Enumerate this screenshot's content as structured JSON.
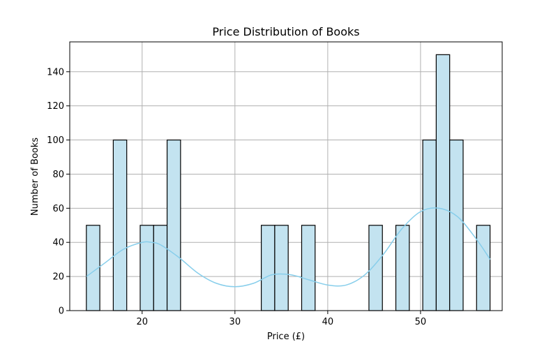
{
  "chart_data": {
    "type": "bar",
    "title": "Price Distribution of Books",
    "xlabel": "Price (£)",
    "ylabel": "Number of Books",
    "xlim": [
      12.2,
      58.8
    ],
    "ylim": [
      0,
      157.5
    ],
    "xticks": [
      20,
      30,
      40,
      50
    ],
    "yticks": [
      0,
      20,
      40,
      60,
      80,
      100,
      120,
      140
    ],
    "grid": true,
    "bin_width": 1.45,
    "bins": [
      {
        "start": 13.99,
        "end": 15.44,
        "count": 50
      },
      {
        "start": 16.89,
        "end": 18.34,
        "count": 100
      },
      {
        "start": 19.79,
        "end": 21.24,
        "count": 50
      },
      {
        "start": 21.24,
        "end": 22.69,
        "count": 50
      },
      {
        "start": 22.69,
        "end": 24.14,
        "count": 100
      },
      {
        "start": 32.84,
        "end": 34.29,
        "count": 50
      },
      {
        "start": 34.29,
        "end": 35.74,
        "count": 50
      },
      {
        "start": 37.19,
        "end": 38.64,
        "count": 50
      },
      {
        "start": 44.44,
        "end": 45.89,
        "count": 50
      },
      {
        "start": 47.34,
        "end": 48.79,
        "count": 50
      },
      {
        "start": 50.24,
        "end": 51.69,
        "count": 100
      },
      {
        "start": 51.69,
        "end": 53.14,
        "count": 150
      },
      {
        "start": 53.14,
        "end": 54.59,
        "count": 100
      },
      {
        "start": 56.04,
        "end": 57.49,
        "count": 50
      }
    ],
    "kde": {
      "x": [
        14,
        16,
        18,
        20,
        21,
        22,
        24,
        26,
        28,
        30,
        32,
        34,
        36,
        38,
        40,
        42,
        44,
        46,
        48,
        50,
        52,
        54,
        56,
        57.5
      ],
      "y": [
        20,
        28,
        36,
        40,
        40,
        38.5,
        31,
        22,
        16,
        14,
        16,
        21,
        21,
        18,
        15,
        15,
        21,
        33,
        48,
        58,
        60,
        55,
        42,
        30
      ]
    },
    "colors": {
      "bar_fill": "#c3e3f0",
      "bar_edge": "#000000",
      "kde_line": "#87ceeb",
      "grid": "#b0b0b0"
    }
  }
}
